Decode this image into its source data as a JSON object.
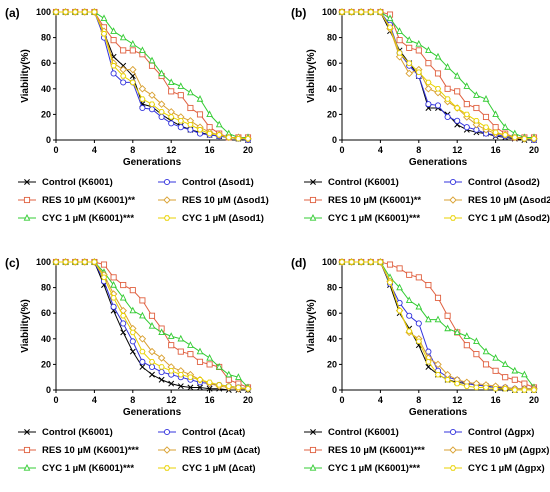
{
  "colors": {
    "control_k6001": "#000000",
    "res_k6001": "#e06040",
    "cyc_k6001": "#33cc33",
    "control_mutant": "#3333dd",
    "res_mutant": "#d9a030",
    "cyc_mutant": "#e8d200"
  },
  "chart_data": [
    {
      "type": "line",
      "panel_label": "(a)",
      "xlabel": "Generations",
      "ylabel": "Viability(%)",
      "xlim": [
        0,
        20
      ],
      "ylim": [
        0,
        100
      ],
      "xticks": [
        "0",
        "4",
        "8",
        "12",
        "16",
        "20"
      ],
      "yticks": [
        "0",
        "20",
        "40",
        "60",
        "80",
        "100"
      ],
      "grid": false,
      "legend_position": "bottom",
      "x": [
        0,
        1,
        2,
        3,
        4,
        5,
        6,
        7,
        8,
        9,
        10,
        11,
        12,
        13,
        14,
        15,
        16,
        17,
        18,
        19,
        20
      ],
      "series": [
        {
          "name": "Control (K6001)",
          "marker": "x",
          "color_key": "control_k6001",
          "values": [
            100,
            100,
            100,
            100,
            100,
            84,
            65,
            58,
            50,
            28,
            26,
            20,
            15,
            11,
            8,
            6,
            4,
            3,
            2,
            1,
            0
          ]
        },
        {
          "name": "RES 10 µM (K6001)**",
          "marker": "square",
          "color_key": "res_k6001",
          "values": [
            100,
            100,
            100,
            100,
            100,
            88,
            78,
            70,
            70,
            67,
            58,
            50,
            38,
            35,
            25,
            20,
            10,
            5,
            2,
            2,
            2
          ]
        },
        {
          "name": "CYC 1 µM (K6001)***",
          "marker": "triangle",
          "color_key": "cyc_k6001",
          "values": [
            100,
            100,
            100,
            100,
            100,
            95,
            85,
            80,
            75,
            70,
            62,
            52,
            45,
            42,
            37,
            32,
            20,
            12,
            5,
            2,
            2
          ]
        },
        {
          "name": "Control (Δsod1)",
          "marker": "circle",
          "color_key": "control_mutant",
          "values": [
            100,
            100,
            100,
            100,
            100,
            80,
            52,
            45,
            45,
            25,
            24,
            18,
            13,
            10,
            8,
            5,
            4,
            3,
            2,
            1,
            0
          ]
        },
        {
          "name": "RES 10 µM (Δsod1)",
          "marker": "diamond",
          "color_key": "res_mutant",
          "values": [
            100,
            100,
            100,
            100,
            100,
            85,
            60,
            55,
            55,
            40,
            35,
            28,
            22,
            18,
            15,
            10,
            6,
            4,
            2,
            2,
            1
          ]
        },
        {
          "name": "CYC 1 µM (Δsod1)",
          "marker": "hexagon",
          "color_key": "cyc_mutant",
          "values": [
            100,
            100,
            100,
            100,
            100,
            83,
            58,
            50,
            45,
            32,
            28,
            22,
            18,
            15,
            12,
            8,
            5,
            4,
            2,
            1,
            1
          ]
        }
      ]
    },
    {
      "type": "line",
      "panel_label": "(b)",
      "xlabel": "Generations",
      "ylabel": "Viability(%)",
      "xlim": [
        0,
        20
      ],
      "ylim": [
        0,
        100
      ],
      "xticks": [
        "0",
        "4",
        "8",
        "12",
        "16",
        "20"
      ],
      "yticks": [
        "0",
        "20",
        "40",
        "60",
        "80",
        "100"
      ],
      "grid": false,
      "legend_position": "bottom",
      "x": [
        0,
        1,
        2,
        3,
        4,
        5,
        6,
        7,
        8,
        9,
        10,
        11,
        12,
        13,
        14,
        15,
        16,
        17,
        18,
        19,
        20
      ],
      "series": [
        {
          "name": "Control (K6001)",
          "marker": "x",
          "color_key": "control_k6001",
          "values": [
            100,
            100,
            100,
            100,
            100,
            85,
            70,
            60,
            50,
            25,
            25,
            20,
            12,
            8,
            6,
            5,
            3,
            2,
            1,
            0,
            0
          ]
        },
        {
          "name": "RES 10 µM (K6001)**",
          "marker": "square",
          "color_key": "res_k6001",
          "values": [
            100,
            100,
            100,
            100,
            100,
            98,
            78,
            72,
            70,
            60,
            52,
            40,
            38,
            28,
            25,
            18,
            10,
            5,
            2,
            2,
            2
          ]
        },
        {
          "name": "CYC 1 µM (K6001)***",
          "marker": "triangle",
          "color_key": "cyc_k6001",
          "values": [
            100,
            100,
            100,
            100,
            100,
            95,
            85,
            78,
            75,
            70,
            65,
            57,
            50,
            42,
            35,
            32,
            20,
            10,
            5,
            2,
            2
          ]
        },
        {
          "name": "Control (Δsod2)",
          "marker": "circle",
          "color_key": "control_mutant",
          "values": [
            100,
            100,
            100,
            100,
            100,
            90,
            68,
            58,
            50,
            28,
            27,
            18,
            15,
            10,
            8,
            5,
            4,
            3,
            2,
            1,
            0
          ]
        },
        {
          "name": "RES 10 µM (Δsod2)",
          "marker": "diamond",
          "color_key": "res_mutant",
          "values": [
            100,
            100,
            100,
            100,
            100,
            87,
            65,
            52,
            55,
            40,
            37,
            30,
            25,
            18,
            12,
            8,
            5,
            4,
            2,
            1,
            1
          ]
        },
        {
          "name": "CYC 1 µM (Δsod2)",
          "marker": "hexagon",
          "color_key": "cyc_mutant",
          "values": [
            100,
            100,
            100,
            100,
            100,
            88,
            68,
            60,
            53,
            45,
            40,
            32,
            25,
            20,
            15,
            10,
            6,
            4,
            2,
            1,
            1
          ]
        }
      ]
    },
    {
      "type": "line",
      "panel_label": "(c)",
      "xlabel": "Generations",
      "ylabel": "Viability(%)",
      "xlim": [
        0,
        20
      ],
      "ylim": [
        0,
        100
      ],
      "xticks": [
        "0",
        "4",
        "8",
        "12",
        "16",
        "20"
      ],
      "yticks": [
        "0",
        "20",
        "40",
        "60",
        "80",
        "100"
      ],
      "grid": false,
      "legend_position": "bottom",
      "x": [
        0,
        1,
        2,
        3,
        4,
        5,
        6,
        7,
        8,
        9,
        10,
        11,
        12,
        13,
        14,
        15,
        16,
        17,
        18,
        19,
        20
      ],
      "series": [
        {
          "name": "Control (K6001)",
          "marker": "x",
          "color_key": "control_k6001",
          "values": [
            100,
            100,
            100,
            100,
            100,
            82,
            62,
            45,
            30,
            18,
            12,
            8,
            5,
            3,
            2,
            2,
            1,
            1,
            0,
            0,
            0
          ]
        },
        {
          "name": "RES 10 µM (K6001)***",
          "marker": "square",
          "color_key": "res_k6001",
          "values": [
            100,
            100,
            100,
            100,
            100,
            98,
            88,
            82,
            78,
            70,
            58,
            48,
            35,
            30,
            28,
            22,
            20,
            18,
            8,
            5,
            2
          ]
        },
        {
          "name": "CYC 1 µM (K6001)***",
          "marker": "triangle",
          "color_key": "cyc_k6001",
          "values": [
            100,
            100,
            100,
            100,
            100,
            92,
            82,
            72,
            62,
            58,
            50,
            45,
            42,
            40,
            35,
            30,
            25,
            18,
            12,
            10,
            2
          ]
        },
        {
          "name": "Control (Δcat)",
          "marker": "circle",
          "color_key": "control_mutant",
          "values": [
            100,
            100,
            100,
            100,
            100,
            85,
            65,
            52,
            38,
            22,
            18,
            14,
            12,
            10,
            8,
            6,
            5,
            4,
            3,
            2,
            1
          ]
        },
        {
          "name": "RES 10 µM (Δcat)",
          "marker": "diamond",
          "color_key": "res_mutant",
          "values": [
            100,
            100,
            100,
            100,
            100,
            90,
            75,
            62,
            48,
            40,
            30,
            25,
            18,
            15,
            12,
            8,
            5,
            3,
            2,
            1,
            1
          ]
        },
        {
          "name": "CYC 1 µM (Δcat)",
          "marker": "hexagon",
          "color_key": "cyc_mutant",
          "values": [
            100,
            100,
            100,
            100,
            100,
            88,
            72,
            58,
            45,
            30,
            22,
            18,
            15,
            12,
            10,
            8,
            6,
            4,
            3,
            2,
            1
          ]
        }
      ]
    },
    {
      "type": "line",
      "panel_label": "(d)",
      "xlabel": "Generations",
      "ylabel": "Viability(%)",
      "xlim": [
        0,
        20
      ],
      "ylim": [
        0,
        100
      ],
      "xticks": [
        "0",
        "4",
        "8",
        "12",
        "16",
        "20"
      ],
      "yticks": [
        "0",
        "20",
        "40",
        "60",
        "80",
        "100"
      ],
      "grid": false,
      "legend_position": "bottom",
      "x": [
        0,
        1,
        2,
        3,
        4,
        5,
        6,
        7,
        8,
        9,
        10,
        11,
        12,
        13,
        14,
        15,
        16,
        17,
        18,
        19,
        20
      ],
      "series": [
        {
          "name": "Control (K6001)",
          "marker": "x",
          "color_key": "control_k6001",
          "values": [
            100,
            100,
            100,
            100,
            100,
            82,
            60,
            48,
            35,
            18,
            12,
            8,
            6,
            5,
            4,
            3,
            2,
            1,
            0,
            0,
            0
          ]
        },
        {
          "name": "RES 10 µM (K6001)***",
          "marker": "square",
          "color_key": "res_k6001",
          "values": [
            100,
            100,
            100,
            100,
            100,
            98,
            95,
            90,
            88,
            82,
            72,
            58,
            45,
            35,
            28,
            20,
            15,
            10,
            8,
            5,
            2
          ]
        },
        {
          "name": "CYC 1 µM (K6001)***",
          "marker": "triangle",
          "color_key": "cyc_k6001",
          "values": [
            100,
            100,
            100,
            100,
            100,
            88,
            80,
            70,
            65,
            55,
            55,
            48,
            45,
            42,
            38,
            30,
            25,
            20,
            15,
            12,
            2
          ]
        },
        {
          "name": "Control (Δgpx)",
          "marker": "circle",
          "color_key": "control_mutant",
          "values": [
            100,
            100,
            100,
            100,
            100,
            83,
            68,
            58,
            52,
            30,
            15,
            10,
            8,
            5,
            4,
            3,
            2,
            2,
            1,
            1,
            1
          ]
        },
        {
          "name": "RES 10 µM (Δgpx)",
          "marker": "diamond",
          "color_key": "res_mutant",
          "values": [
            100,
            100,
            100,
            100,
            100,
            85,
            62,
            45,
            40,
            25,
            20,
            12,
            8,
            6,
            5,
            4,
            3,
            2,
            1,
            1,
            1
          ]
        },
        {
          "name": "CYC 1 µM (Δgpx)",
          "marker": "hexagon",
          "color_key": "cyc_mutant",
          "values": [
            100,
            100,
            100,
            100,
            100,
            84,
            62,
            46,
            38,
            22,
            12,
            8,
            5,
            3,
            2,
            2,
            1,
            1,
            0,
            0,
            0
          ]
        }
      ]
    }
  ]
}
